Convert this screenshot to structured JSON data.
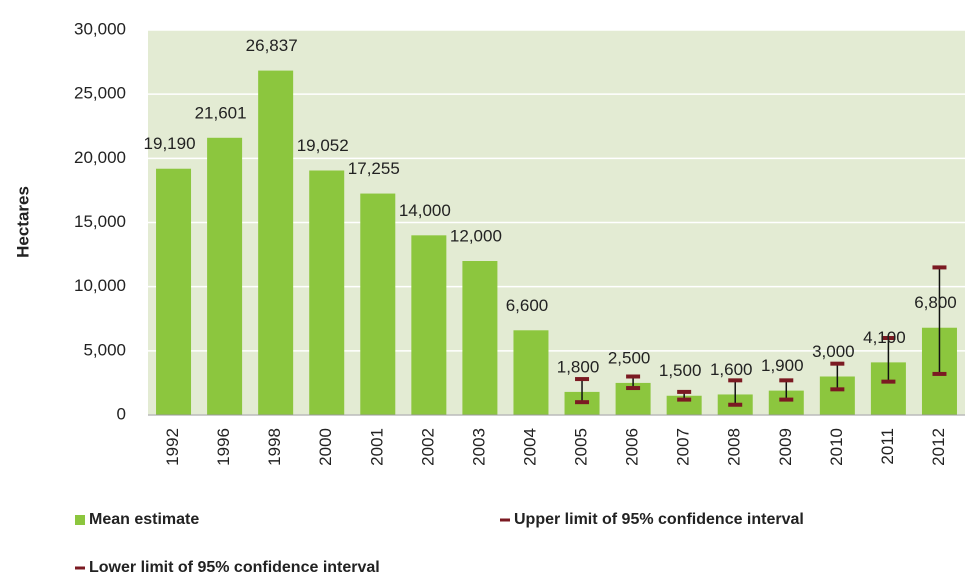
{
  "chart_data": {
    "type": "bar",
    "ylabel": "Hectares",
    "categories": [
      "1992",
      "1996",
      "1998",
      "2000",
      "2001",
      "2002",
      "2003",
      "2004",
      "2005",
      "2006",
      "2007",
      "2008",
      "2009",
      "2010",
      "2011",
      "2012"
    ],
    "series": [
      {
        "name": "Mean estimate",
        "color": "#8cc63e",
        "values": [
          19190,
          21601,
          26837,
          19052,
          17255,
          14000,
          12000,
          6600,
          1800,
          2500,
          1500,
          1600,
          1900,
          3000,
          4100,
          6800
        ],
        "value_labels": [
          "19,190",
          "21,601",
          "26,837",
          "19,052",
          "17,255",
          "14,000",
          "12,000",
          "6,600",
          "1,800",
          "2,500",
          "1,500",
          "1,600",
          "1,900",
          "3,000",
          "4,100",
          "6,800"
        ]
      },
      {
        "name": "Upper limit of 95% confidence interval",
        "color": "#7b1a22",
        "values": [
          null,
          null,
          null,
          null,
          null,
          null,
          null,
          null,
          2800,
          3000,
          1800,
          2700,
          2700,
          4000,
          6000,
          11500
        ]
      },
      {
        "name": "Lower limit of 95% confidence interval",
        "color": "#7b1a22",
        "values": [
          null,
          null,
          null,
          null,
          null,
          null,
          null,
          null,
          1000,
          2100,
          1200,
          800,
          1200,
          2000,
          2600,
          3200
        ]
      }
    ],
    "ylim": [
      0,
      30000
    ],
    "yticks": [
      0,
      {
        "value": 5000,
        "label": "5,000"
      },
      {
        "value": 10000,
        "label": "10,000"
      },
      {
        "value": 15000,
        "label": "15,000"
      },
      {
        "value": 20000,
        "label": "20,000"
      },
      {
        "value": 25000,
        "label": "25,000"
      },
      {
        "value": 30000,
        "label": "30,000"
      }
    ],
    "grid": true
  }
}
